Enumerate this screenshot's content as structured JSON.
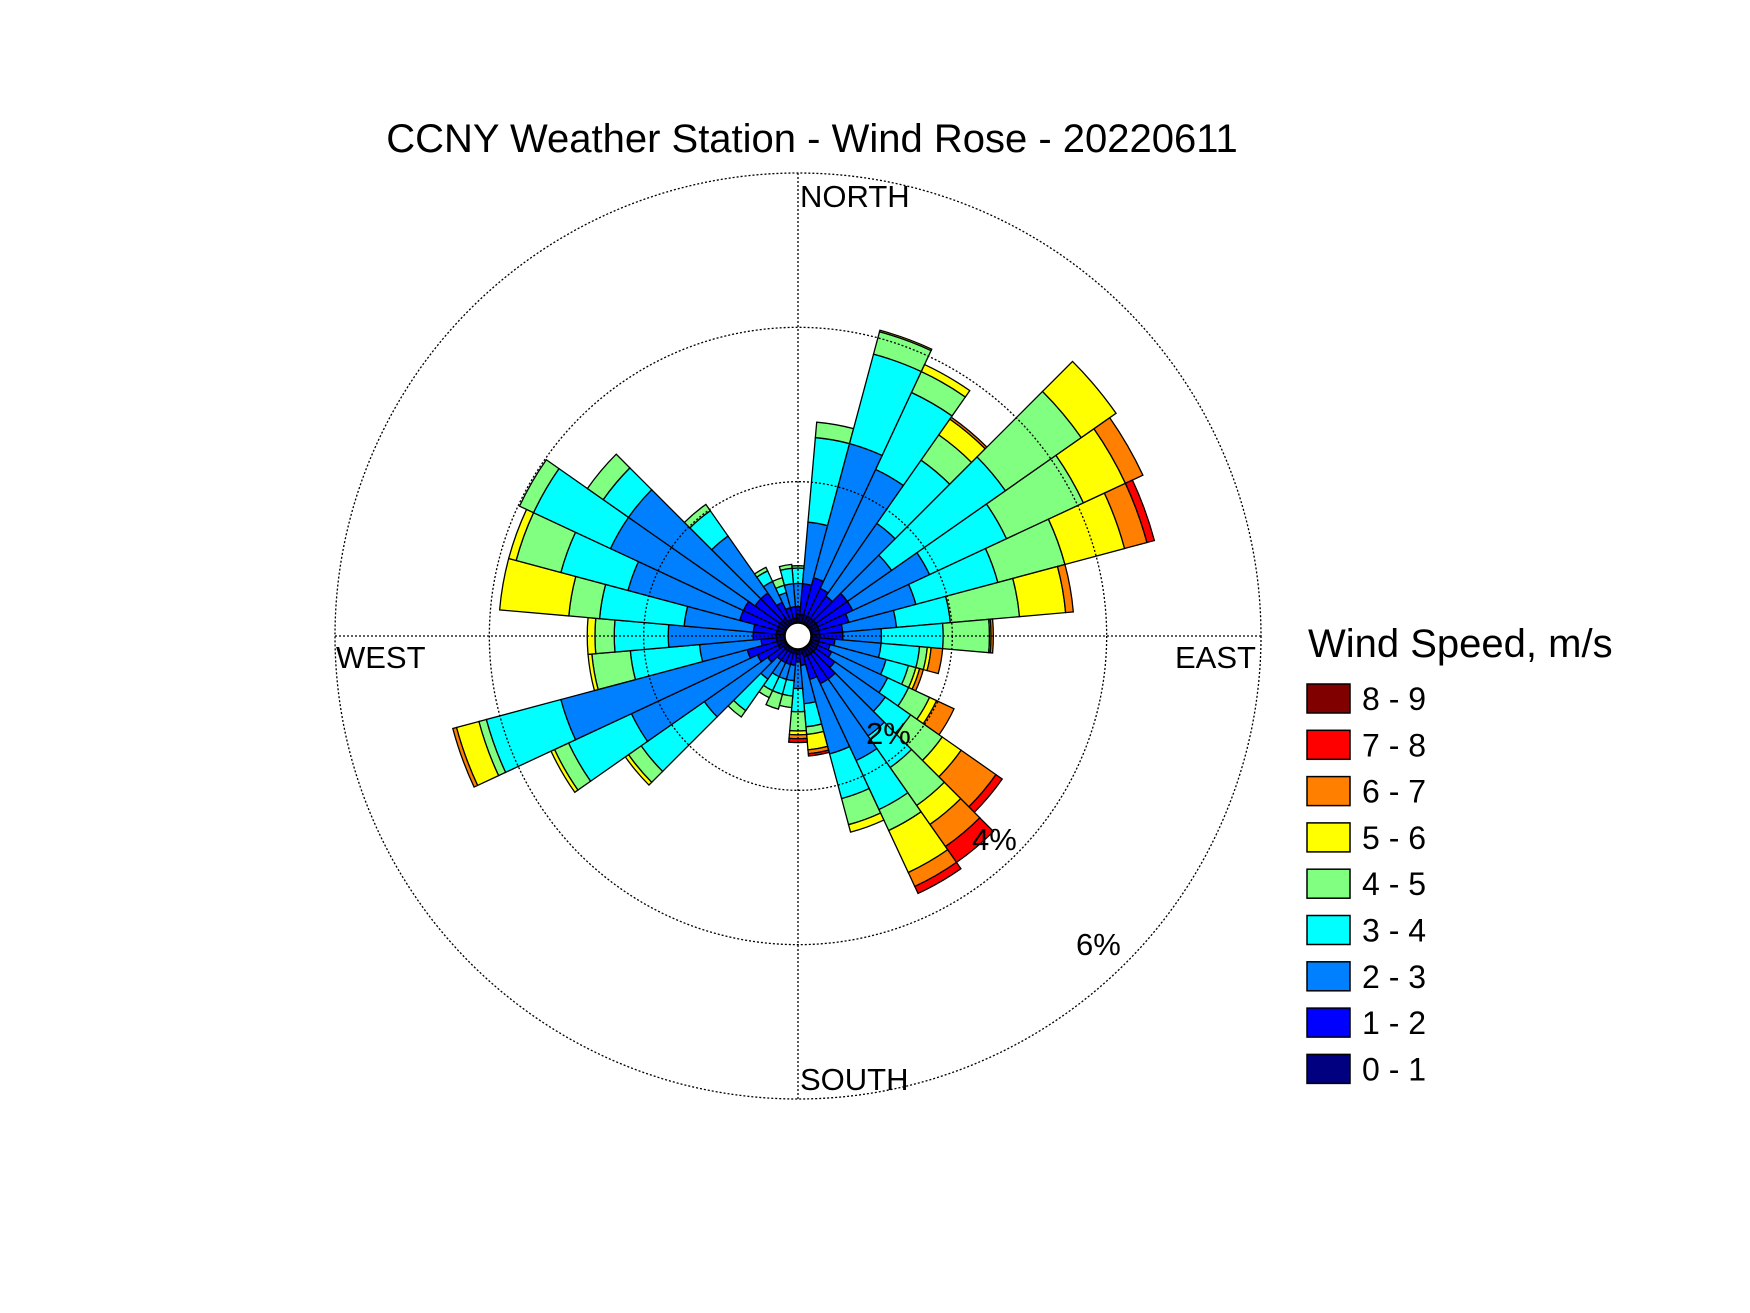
{
  "chart_data": {
    "type": "polar-bar",
    "title": "CCNY Weather Station - Wind Rose - 20220611",
    "direction_labels": {
      "north": "NORTH",
      "south": "SOUTH",
      "east": "EAST",
      "west": "WEST"
    },
    "rings": [
      {
        "value": 2,
        "label": "2%"
      },
      {
        "value": 4,
        "label": "4%"
      },
      {
        "value": 6,
        "label": "6%"
      }
    ],
    "max_percent": 6,
    "legend": {
      "title": "Wind Speed, m/s",
      "position": "right",
      "bins": [
        {
          "label": "8 - 9",
          "color": "#800000"
        },
        {
          "label": "7 - 8",
          "color": "#ff0000"
        },
        {
          "label": "6 - 7",
          "color": "#ff8000"
        },
        {
          "label": "5 - 6",
          "color": "#ffff00"
        },
        {
          "label": "4 - 5",
          "color": "#80ff80"
        },
        {
          "label": "3 - 4",
          "color": "#00ffff"
        },
        {
          "label": "2 - 3",
          "color": "#0080ff"
        },
        {
          "label": "1 - 2",
          "color": "#0000ff"
        },
        {
          "label": "0 - 1",
          "color": "#000080"
        }
      ]
    },
    "speed_bins": [
      "0 - 1",
      "1 - 2",
      "2 - 3",
      "3 - 4",
      "4 - 5",
      "5 - 6",
      "6 - 7",
      "7 - 8",
      "8 - 9"
    ],
    "sector_width_deg": 10,
    "sectors": [
      {
        "dir": 0,
        "cumulative": [
          0.1,
          0.2,
          0.5,
          0.7,
          0.73
        ]
      },
      {
        "dir": 10,
        "cumulative": [
          0.1,
          0.5,
          1.3,
          2.4,
          2.6
        ]
      },
      {
        "dir": 20,
        "cumulative": [
          0.1,
          0.6,
          2.4,
          3.6,
          3.9,
          3.92
        ]
      },
      {
        "dir": 30,
        "cumulative": [
          0.1,
          0.5,
          2.2,
          3.3,
          3.6,
          3.7
        ]
      },
      {
        "dir": 40,
        "cumulative": [
          0.1,
          0.45,
          1.6,
          2.6,
          3.0,
          3.25,
          3.28
        ]
      },
      {
        "dir": 50,
        "cumulative": [
          0.1,
          0.6,
          1.3,
          3.1,
          4.3,
          4.85
        ]
      },
      {
        "dir": 60,
        "cumulative": [
          0.1,
          0.6,
          1.7,
          2.8,
          3.9,
          4.5,
          4.75
        ]
      },
      {
        "dir": 70,
        "cumulative": [
          0.1,
          0.5,
          1.4,
          2.5,
          3.4,
          4.2,
          4.5,
          4.6
        ]
      },
      {
        "dir": 80,
        "cumulative": [
          0.1,
          0.4,
          1.1,
          1.8,
          2.7,
          3.3,
          3.4
        ]
      },
      {
        "dir": 90,
        "cumulative": [
          0.1,
          0.4,
          0.9,
          1.7,
          2.3,
          2.32,
          2.35
        ]
      },
      {
        "dir": 100,
        "cumulative": [
          0.1,
          0.3,
          0.9,
          1.4,
          1.5,
          1.55,
          1.7
        ]
      },
      {
        "dir": 110,
        "cumulative": [
          0.1,
          0.25,
          1.0,
          1.3,
          1.4,
          1.45,
          1.5
        ]
      },
      {
        "dir": 120,
        "cumulative": [
          0.1,
          0.3,
          1.1,
          1.4,
          1.7,
          1.8,
          2.05
        ]
      },
      {
        "dir": 130,
        "cumulative": [
          0.1,
          0.4,
          1.2,
          1.6,
          2.1,
          2.4,
          2.95,
          3.05
        ]
      },
      {
        "dir": 140,
        "cumulative": [
          0.1,
          0.5,
          1.4,
          1.9,
          2.5,
          2.8,
          3.15,
          3.4
        ]
      },
      {
        "dir": 150,
        "cumulative": [
          0.1,
          0.5,
          1.6,
          2.3,
          2.6,
          3.2,
          3.4,
          3.5
        ]
      },
      {
        "dir": 160,
        "cumulative": [
          0.1,
          0.4,
          1.4,
          2.0,
          2.35,
          2.45
        ]
      },
      {
        "dir": 170,
        "cumulative": [
          0.05,
          0.2,
          0.7,
          1.0,
          1.1,
          1.3,
          1.35,
          1.38
        ]
      },
      {
        "dir": 180,
        "cumulative": [
          0.05,
          0.15,
          0.5,
          0.8,
          1.05,
          1.1,
          1.15,
          1.2
        ]
      },
      {
        "dir": 190,
        "cumulative": [
          0.05,
          0.2,
          0.4,
          0.6,
          0.75
        ]
      },
      {
        "dir": 200,
        "cumulative": [
          0.05,
          0.2,
          0.4,
          0.6,
          0.8
        ]
      },
      {
        "dir": 210,
        "cumulative": [
          0.05,
          0.2,
          0.4,
          0.6,
          0.7
        ]
      },
      {
        "dir": 220,
        "cumulative": [
          0.05,
          0.2,
          0.5,
          1.0,
          1.1
        ]
      },
      {
        "dir": 230,
        "cumulative": [
          0.05,
          0.3,
          1.3,
          2.3,
          2.5,
          2.55
        ]
      },
      {
        "dir": 240,
        "cumulative": [
          0.1,
          0.4,
          2.2,
          3.1,
          3.3,
          3.35
        ]
      },
      {
        "dir": 250,
        "cumulative": [
          0.1,
          0.5,
          3.0,
          4.0,
          4.1,
          4.4,
          4.45
        ]
      },
      {
        "dir": 260,
        "cumulative": [
          0.1,
          0.3,
          1.1,
          2.0,
          2.5,
          2.55
        ]
      },
      {
        "dir": 270,
        "cumulative": [
          0.1,
          0.4,
          1.5,
          2.2,
          2.45,
          2.55
        ]
      },
      {
        "dir": 280,
        "cumulative": [
          0.1,
          0.4,
          1.3,
          2.4,
          2.8,
          3.7
        ]
      },
      {
        "dir": 290,
        "cumulative": [
          0.1,
          0.6,
          2.1,
          3.0,
          3.6,
          3.7
        ]
      },
      {
        "dir": 300,
        "cumulative": [
          0.1,
          0.6,
          2.5,
          3.6,
          3.8
        ]
      },
      {
        "dir": 310,
        "cumulative": [
          0.1,
          0.5,
          2.5,
          2.9,
          3.15
        ]
      },
      {
        "dir": 320,
        "cumulative": [
          0.1,
          0.5,
          1.4,
          1.8,
          1.9
        ]
      },
      {
        "dir": 330,
        "cumulative": [
          0.05,
          0.3,
          0.6,
          0.75,
          0.8
        ]
      },
      {
        "dir": 340,
        "cumulative": [
          0.05,
          0.2,
          0.4,
          0.5,
          0.6
        ]
      },
      {
        "dir": 350,
        "cumulative": [
          0.05,
          0.2,
          0.5,
          0.7,
          0.75
        ]
      }
    ],
    "grid": true
  }
}
